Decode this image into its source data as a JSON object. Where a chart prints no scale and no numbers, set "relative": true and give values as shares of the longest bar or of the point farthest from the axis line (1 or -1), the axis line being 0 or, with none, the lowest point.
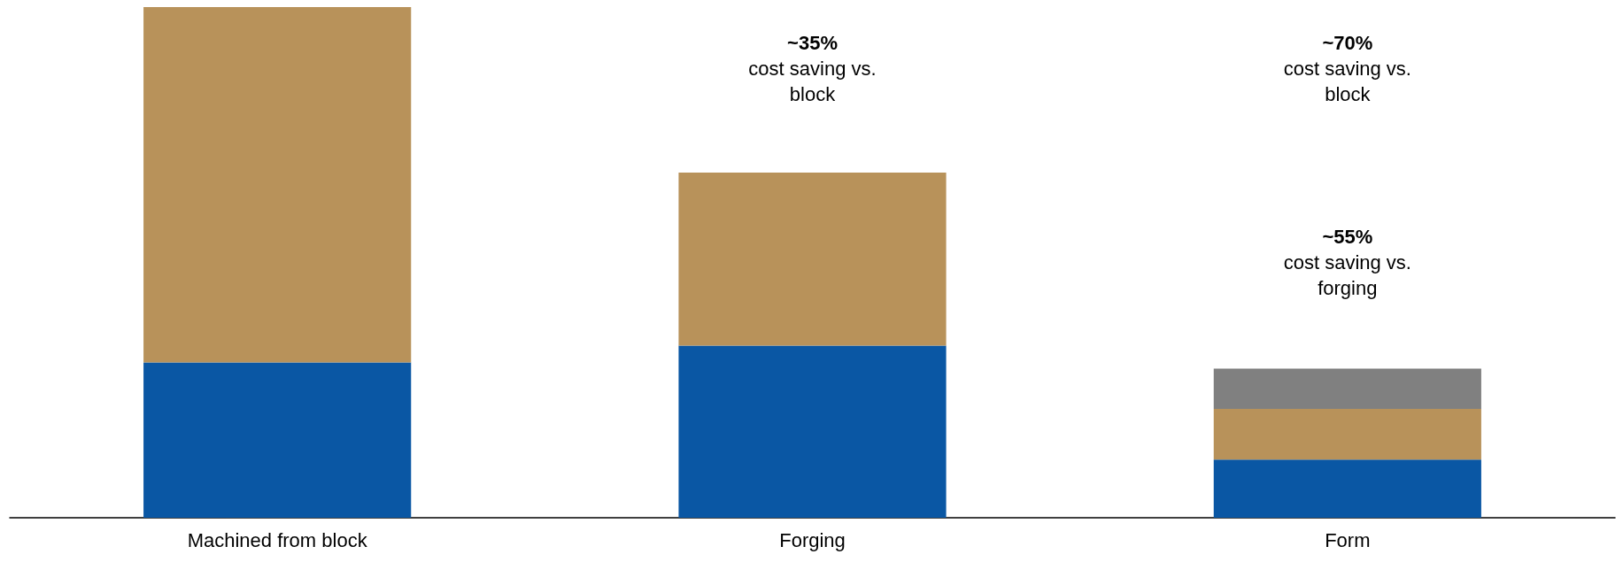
{
  "chart_data": {
    "type": "bar",
    "stacked": true,
    "relative": true,
    "categories": [
      "Machined from block",
      "Forging",
      "Form"
    ],
    "series": [
      {
        "color": "#0a57a4",
        "values": [
          0.304,
          0.337,
          0.114
        ]
      },
      {
        "color": "#b8925a",
        "values": [
          0.696,
          0.339,
          0.099
        ]
      },
      {
        "color": "#808080",
        "values": [
          null,
          null,
          0.079
        ]
      }
    ],
    "annotations": [
      "~35%\ncost saving vs.\nblock",
      "~70%\ncost saving vs.\nblock",
      "~55%\ncost saving vs.\nforging"
    ],
    "grid": false
  }
}
